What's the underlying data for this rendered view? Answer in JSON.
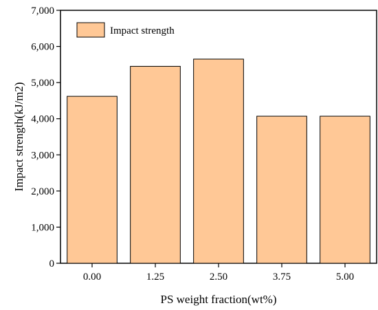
{
  "chart_data": {
    "type": "bar",
    "categories": [
      "0.00",
      "1.25",
      "2.50",
      "3.75",
      "5.00"
    ],
    "series": [
      {
        "name": "Impact strength",
        "values": [
          4620,
          5450,
          5650,
          4070,
          4070
        ]
      }
    ],
    "xlabel": "PS weight fraction(wt%)",
    "ylabel": "Impact strength(kJ/m2)",
    "ylim": [
      0,
      7000
    ],
    "yticks": [
      0,
      1000,
      2000,
      3000,
      4000,
      5000,
      6000,
      7000
    ],
    "ytick_labels": [
      "0",
      "1,000",
      "2,000",
      "3,000",
      "4,000",
      "5,000",
      "6,000",
      "7,000"
    ],
    "grid": false,
    "legend_position": "top-left",
    "colors": {
      "bar_fill": "#FFC896",
      "bar_stroke": "#000000"
    }
  }
}
